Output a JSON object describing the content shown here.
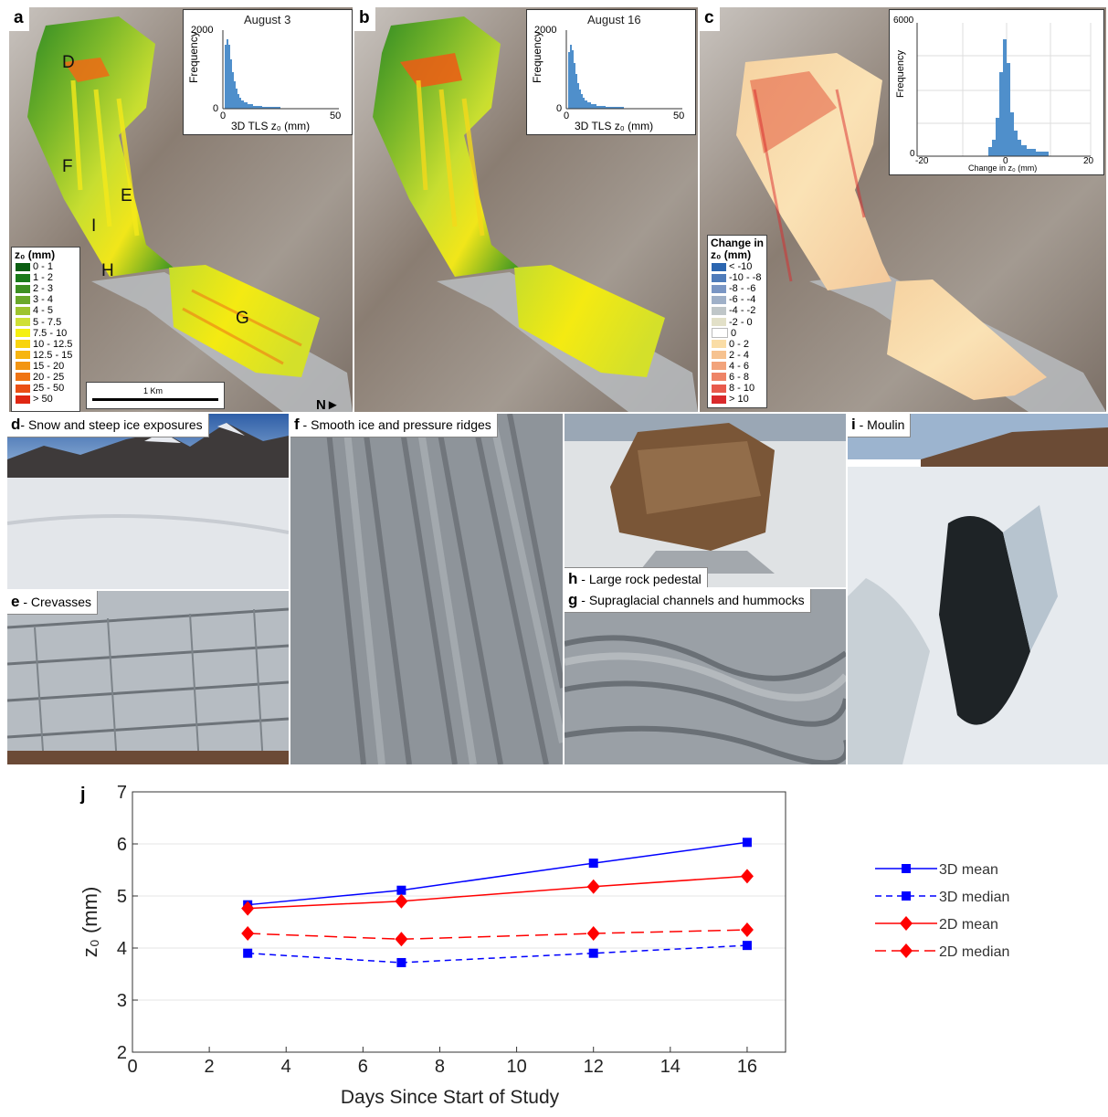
{
  "panels": {
    "a": {
      "letter": "a",
      "inset_title": "August 3",
      "inset_ylabel": "Frequency",
      "inset_xlabel": "3D TLS z₀ (mm)",
      "inset_ymax": "2000",
      "inset_y0": "0",
      "inset_x0": "0",
      "inset_xmax": "50"
    },
    "b": {
      "letter": "b",
      "inset_title": "August 16",
      "inset_ylabel": "Frequency",
      "inset_xlabel": "3D TLS z₀ (mm)",
      "inset_ymax": "2000",
      "inset_y0": "0",
      "inset_x0": "0",
      "inset_xmax": "50"
    },
    "c": {
      "letter": "c",
      "inset_ylabel": "Frequency",
      "inset_xlabel": "Change in z₀ (mm)",
      "inset_ymax": "6000",
      "inset_y0": "0",
      "inset_xmin": "-20",
      "inset_x0": "0",
      "inset_xmax": "20"
    }
  },
  "map_letters": [
    "D",
    "F",
    "E",
    "I",
    "H",
    "G"
  ],
  "scalebar_label": "1 Km",
  "north_label": "N",
  "legend_a": {
    "title": "z₀ (mm)",
    "entries": [
      {
        "label": "0 - 1",
        "color": "#0b5e12"
      },
      {
        "label": "1 - 2",
        "color": "#1a7a1a"
      },
      {
        "label": "2 - 3",
        "color": "#3d8f22"
      },
      {
        "label": "3 - 4",
        "color": "#6aa82a"
      },
      {
        "label": "4 - 5",
        "color": "#9ec42e"
      },
      {
        "label": "5 - 7.5",
        "color": "#cfe036"
      },
      {
        "label": "7.5 - 10",
        "color": "#f5f010"
      },
      {
        "label": "10 - 12.5",
        "color": "#f8d40e"
      },
      {
        "label": "12.5 - 15",
        "color": "#f7b50f"
      },
      {
        "label": "15 - 20",
        "color": "#f39512"
      },
      {
        "label": "20 - 25",
        "color": "#ef7414"
      },
      {
        "label": "25 - 50",
        "color": "#ea4f15"
      },
      {
        "label": "> 50",
        "color": "#e02712"
      }
    ]
  },
  "legend_c": {
    "title_line1": "Change in",
    "title_line2": "z₀ (mm)",
    "entries": [
      {
        "label": "< -10",
        "color": "#2c66b0"
      },
      {
        "label": "-10 - -8",
        "color": "#4f7cba"
      },
      {
        "label": "-8 - -6",
        "color": "#7a96c4"
      },
      {
        "label": "-6 - -4",
        "color": "#9fb0c8"
      },
      {
        "label": "-4 - -2",
        "color": "#bfc6c8"
      },
      {
        "label": "-2 - 0",
        "color": "#e2e0c8"
      },
      {
        "label": "0",
        "color": "#ffffff"
      },
      {
        "label": "0 - 2",
        "color": "#fadda6"
      },
      {
        "label": "2 - 4",
        "color": "#f6c290"
      },
      {
        "label": "4 - 6",
        "color": "#f2a37b"
      },
      {
        "label": "6 - 8",
        "color": "#ee8467"
      },
      {
        "label": "8 - 10",
        "color": "#e85a4c"
      },
      {
        "label": "> 10",
        "color": "#d92a2c"
      }
    ]
  },
  "photos": {
    "d": {
      "letter": "d",
      "caption": "- Snow and steep ice exposures"
    },
    "e": {
      "letter": "e",
      "caption": " - Crevasses"
    },
    "f": {
      "letter": "f",
      "caption": " - Smooth ice and pressure ridges"
    },
    "h": {
      "letter": "h",
      "caption": " - Large rock pedestal"
    },
    "g": {
      "letter": "g",
      "caption": " - Supraglacial channels and hummocks"
    },
    "i": {
      "letter": "i",
      "caption": " - Moulin"
    }
  },
  "chart_data": {
    "type": "line",
    "panel_letter": "j",
    "x": [
      3,
      7,
      12,
      16
    ],
    "series": [
      {
        "name": "3D mean",
        "values": [
          4.83,
          5.11,
          5.63,
          6.03
        ],
        "color": "#0000ff",
        "dash": "solid",
        "marker": "square"
      },
      {
        "name": "3D median",
        "values": [
          3.9,
          3.72,
          3.9,
          4.05
        ],
        "color": "#0000ff",
        "dash": "dashed",
        "marker": "square"
      },
      {
        "name": "2D mean",
        "values": [
          4.76,
          4.9,
          5.18,
          5.38
        ],
        "color": "#ff0000",
        "dash": "solid",
        "marker": "diamond"
      },
      {
        "name": "2D median",
        "values": [
          4.28,
          4.17,
          4.28,
          4.35
        ],
        "color": "#ff0000",
        "dash": "dashed",
        "marker": "diamond"
      }
    ],
    "xlabel": "Days Since Start of Study",
    "ylabel": "z₀ (mm)",
    "xlim": [
      0,
      17
    ],
    "ylim": [
      2,
      7
    ],
    "xticks": [
      0,
      2,
      4,
      6,
      8,
      10,
      12,
      14,
      16
    ],
    "yticks": [
      2,
      3,
      4,
      5,
      6,
      7
    ],
    "grid": "y",
    "legend_position": "right-outside"
  }
}
